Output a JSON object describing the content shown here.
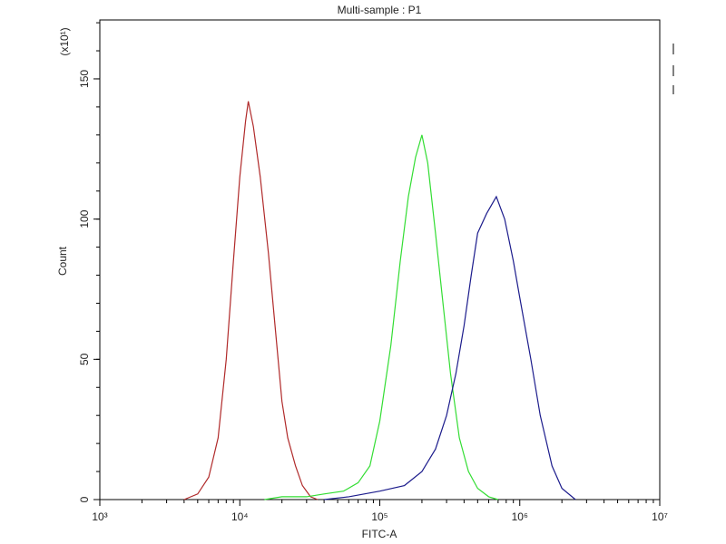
{
  "chart_data": {
    "type": "line",
    "title": "Multi-sample : P1",
    "x_label": "FITC-A",
    "y_label": "Count",
    "y_scale_note": "(x10¹)",
    "xscale": "log",
    "xlim": [
      1000,
      10000000
    ],
    "xticks": [
      {
        "value": 1000,
        "label": "10³"
      },
      {
        "value": 10000,
        "label": "10⁴"
      },
      {
        "value": 100000,
        "label": "10⁵"
      },
      {
        "value": 1000000,
        "label": "10⁶"
      },
      {
        "value": 10000000,
        "label": "10⁷"
      }
    ],
    "ylim": [
      0,
      171
    ],
    "yticks": [
      0,
      50,
      100,
      150
    ],
    "series": [
      {
        "color": "#b02a2a",
        "x": [
          4000,
          5000,
          6000,
          7000,
          8000,
          9000,
          10000,
          11000,
          11500,
          12500,
          14000,
          16000,
          18000,
          20000,
          22000,
          25000,
          28000,
          32000,
          36000
        ],
        "values": [
          0,
          2,
          8,
          22,
          50,
          85,
          115,
          135,
          142,
          133,
          115,
          88,
          60,
          35,
          22,
          12,
          5,
          1,
          0
        ]
      },
      {
        "color": "#33dd33",
        "x": [
          15000,
          20000,
          30000,
          40000,
          55000,
          70000,
          85000,
          100000,
          120000,
          140000,
          160000,
          180000,
          200000,
          220000,
          250000,
          280000,
          320000,
          370000,
          430000,
          500000,
          600000,
          700000
        ],
        "values": [
          0,
          1,
          1,
          2,
          3,
          6,
          12,
          28,
          55,
          85,
          108,
          122,
          130,
          120,
          95,
          72,
          45,
          22,
          10,
          4,
          1,
          0
        ]
      },
      {
        "color": "#1c1c8c",
        "x": [
          40000,
          60000,
          100000,
          150000,
          200000,
          250000,
          300000,
          350000,
          400000,
          450000,
          500000,
          580000,
          680000,
          780000,
          900000,
          1000000,
          1200000,
          1400000,
          1700000,
          2000000,
          2500000
        ],
        "values": [
          0,
          1,
          3,
          5,
          10,
          18,
          30,
          45,
          62,
          80,
          95,
          102,
          108,
          100,
          85,
          72,
          50,
          30,
          12,
          4,
          0
        ]
      }
    ]
  }
}
